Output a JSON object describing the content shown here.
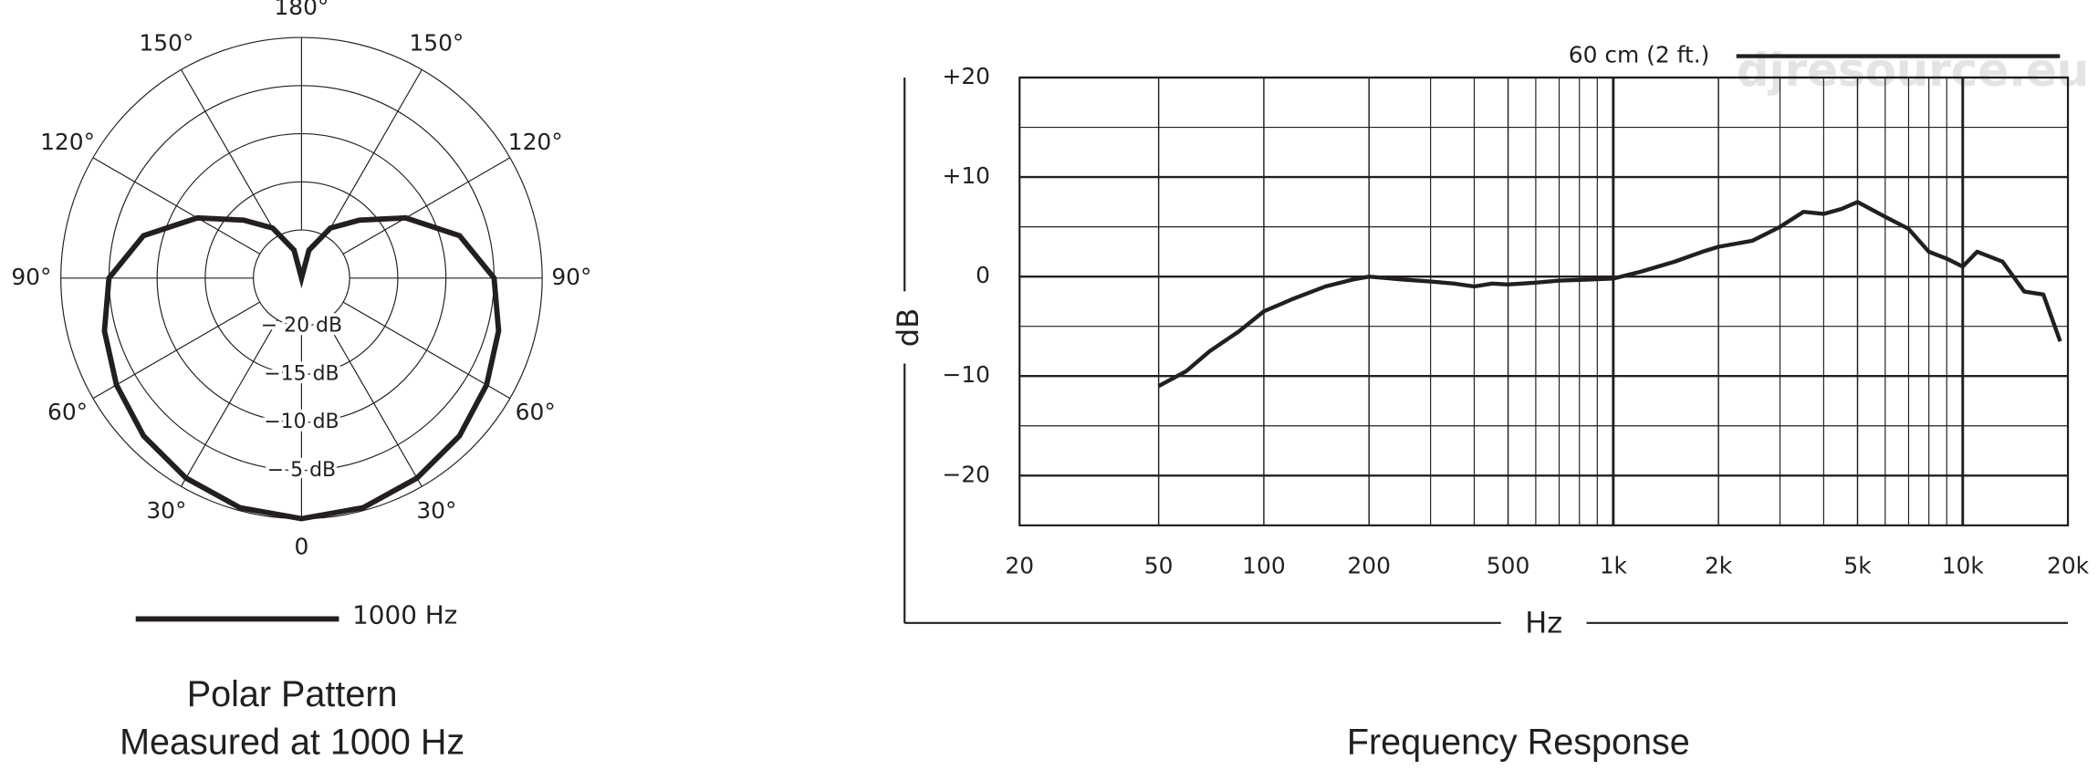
{
  "chart_data": [
    {
      "type": "polar",
      "title": "Polar Pattern",
      "subtitle": "Measured at 1000 Hz",
      "rlim": [
        -25,
        0
      ],
      "rticks": [
        {
          "value": -20,
          "label": "− 20 dB"
        },
        {
          "value": -15,
          "label": "−15 dB"
        },
        {
          "value": -10,
          "label": "−10 dB"
        },
        {
          "value": -5,
          "label": "− 5 dB"
        }
      ],
      "theta_ticks": [
        {
          "value": 0,
          "label": "0"
        },
        {
          "value": 30,
          "label": "30°"
        },
        {
          "value": 60,
          "label": "60°"
        },
        {
          "value": 90,
          "label": "90°"
        },
        {
          "value": 120,
          "label": "120°"
        },
        {
          "value": 150,
          "label": "150°"
        },
        {
          "value": 180,
          "label": "180°"
        },
        {
          "value": 210,
          "label": "150°"
        },
        {
          "value": 240,
          "label": "120°"
        },
        {
          "value": 270,
          "label": "90°"
        },
        {
          "value": 300,
          "label": "60°"
        },
        {
          "value": 330,
          "label": "30°"
        }
      ],
      "series": [
        {
          "name": "1000 Hz",
          "color": "#231f20",
          "theta": [
            0,
            15,
            30,
            45,
            60,
            75,
            90,
            105,
            120,
            135,
            150,
            165,
            180,
            195,
            210,
            225,
            240,
            255,
            270,
            285,
            300,
            315,
            330,
            345
          ],
          "values": [
            0,
            -0.3,
            -1,
            -1.8,
            -2.8,
            -3.8,
            -5,
            -8,
            -12.5,
            -16.5,
            -19,
            -22,
            -25,
            -22,
            -19,
            -16.5,
            -12.5,
            -8,
            -5,
            -3.8,
            -2.8,
            -1.8,
            -1,
            -0.3
          ]
        }
      ]
    },
    {
      "type": "line",
      "title": "Frequency Response",
      "xlabel": "Hz",
      "ylabel": "dB",
      "watermark": "djresource.eu",
      "xscale": "log",
      "xlim": [
        20,
        20000
      ],
      "xticks": [
        20,
        50,
        100,
        200,
        500,
        {
          "value": 1000,
          "label": "1k"
        },
        {
          "value": 2000,
          "label": "2k"
        },
        {
          "value": 5000,
          "label": "5k"
        },
        {
          "value": 10000,
          "label": "10k"
        },
        {
          "value": 20000,
          "label": "20k"
        }
      ],
      "xgrid_minor": [
        300,
        400,
        600,
        700,
        800,
        900,
        3000,
        4000,
        6000,
        7000,
        8000,
        9000
      ],
      "ylim": [
        -25,
        20
      ],
      "yticks": [
        {
          "value": -20,
          "label": "−20"
        },
        {
          "value": -10,
          "label": "−10"
        },
        0,
        {
          "value": 10,
          "label": "+10"
        },
        {
          "value": 20,
          "label": "+20"
        }
      ],
      "minor_yticks": [
        -15,
        -5,
        5,
        15
      ],
      "series": [
        {
          "name": "60 cm (2 ft.)",
          "color": "#231f20",
          "x": [
            50,
            60,
            70,
            85,
            100,
            120,
            150,
            180,
            200,
            250,
            300,
            350,
            400,
            450,
            500,
            600,
            700,
            850,
            1000,
            1200,
            1500,
            1800,
            2000,
            2500,
            3000,
            3500,
            4000,
            4500,
            5000,
            6000,
            7000,
            8000,
            9000,
            10000,
            11000,
            13000,
            15000,
            17000,
            19000
          ],
          "values": [
            -11,
            -9.5,
            -7.5,
            -5.5,
            -3.5,
            -2.3,
            -1,
            -0.3,
            0,
            -0.3,
            -0.5,
            -0.7,
            -1,
            -0.7,
            -0.8,
            -0.6,
            -0.4,
            -0.3,
            -0.2,
            0.5,
            1.5,
            2.5,
            3,
            3.6,
            5,
            6.5,
            6.3,
            6.8,
            7.5,
            6,
            4.8,
            2.5,
            1.8,
            1,
            2.5,
            1.5,
            -1.5,
            -1.8,
            -6.5
          ]
        }
      ]
    }
  ]
}
